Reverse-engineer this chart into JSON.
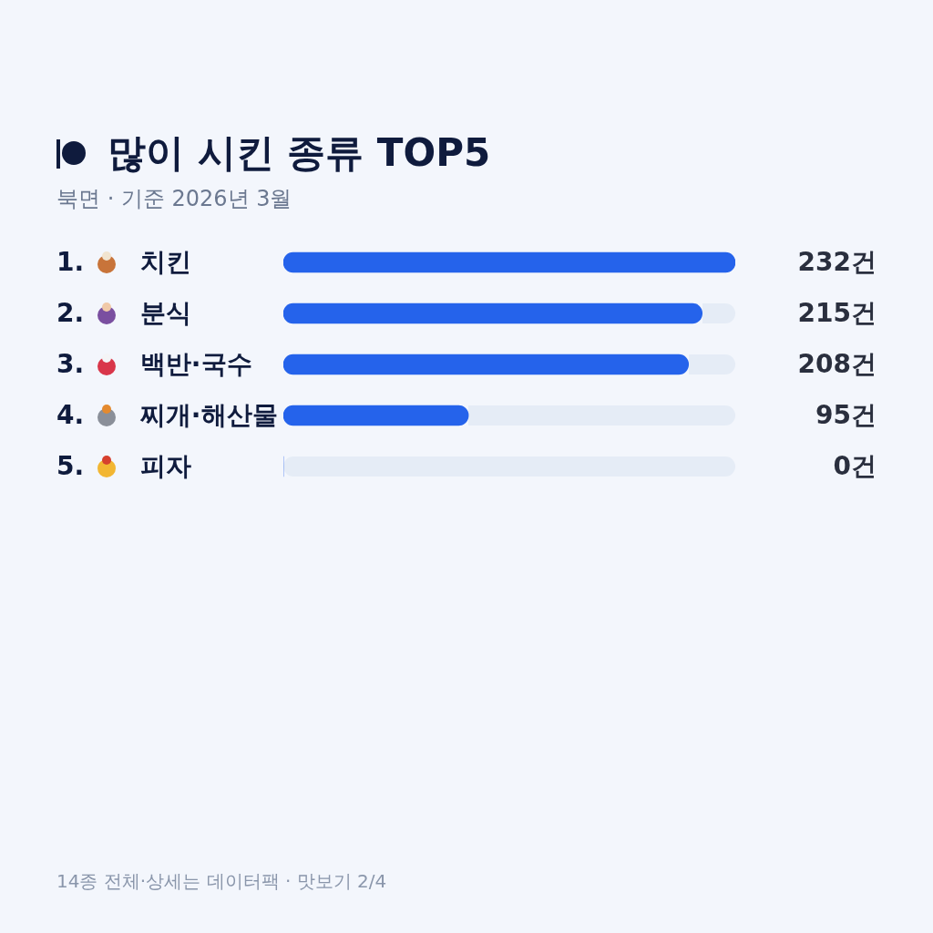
{
  "chart_data": {
    "type": "bar",
    "orientation": "horizontal",
    "title": "많이 시킨 종류 TOP5",
    "subtitle": "북면 · 기준 2026년 3월",
    "categories": [
      "1. 치킨",
      "2. 분식",
      "3. 백반·국수",
      "4. 찌개·해산물",
      "5. 피자"
    ],
    "values": [
      232,
      215,
      208,
      95,
      0
    ],
    "color": "#2563eb",
    "value_labels": [
      "232건",
      "215건",
      "208건",
      "95건",
      "0건"
    ],
    "legend": false,
    "annotations": [
      "14종 전체·상세는 데이터팩 · 맛보기 2/4"
    ]
  }
}
